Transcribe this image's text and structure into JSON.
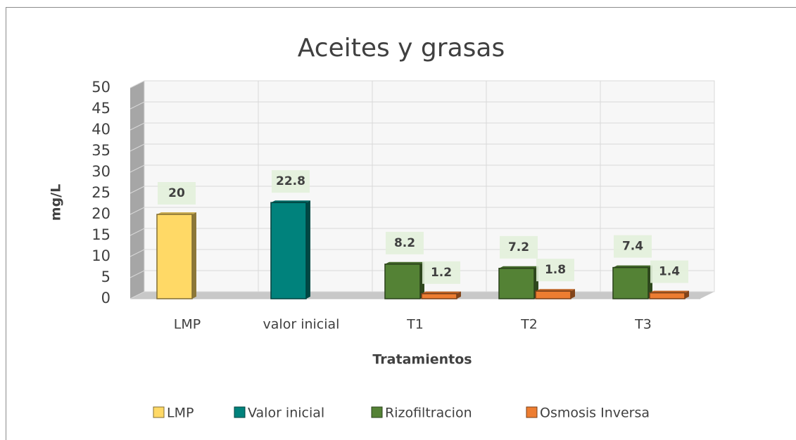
{
  "chart_data": {
    "type": "bar3d",
    "title": "Aceites y grasas",
    "x_label": "Tratamientos",
    "y_label": "mg/L",
    "categories": [
      "LMP",
      "valor inicial",
      "T1",
      "T2",
      "T3"
    ],
    "series": [
      {
        "name": "LMP",
        "color": "#ffd966",
        "values": [
          20,
          null,
          null,
          null,
          null
        ]
      },
      {
        "name": "Valor inicial",
        "color": "#00827c",
        "values": [
          null,
          22.8,
          null,
          null,
          null
        ]
      },
      {
        "name": "Rizofiltracion",
        "color": "#548235",
        "values": [
          null,
          null,
          8.2,
          7.2,
          7.4
        ]
      },
      {
        "name": "Osmosis Inversa",
        "color": "#ed7d31",
        "values": [
          null,
          null,
          1.2,
          1.8,
          1.4
        ]
      }
    ],
    "ylim": [
      0,
      50
    ],
    "yticks": [
      0,
      5,
      10,
      15,
      20,
      25,
      30,
      35,
      40,
      45,
      50
    ],
    "grid": true,
    "legend": "bottom"
  }
}
